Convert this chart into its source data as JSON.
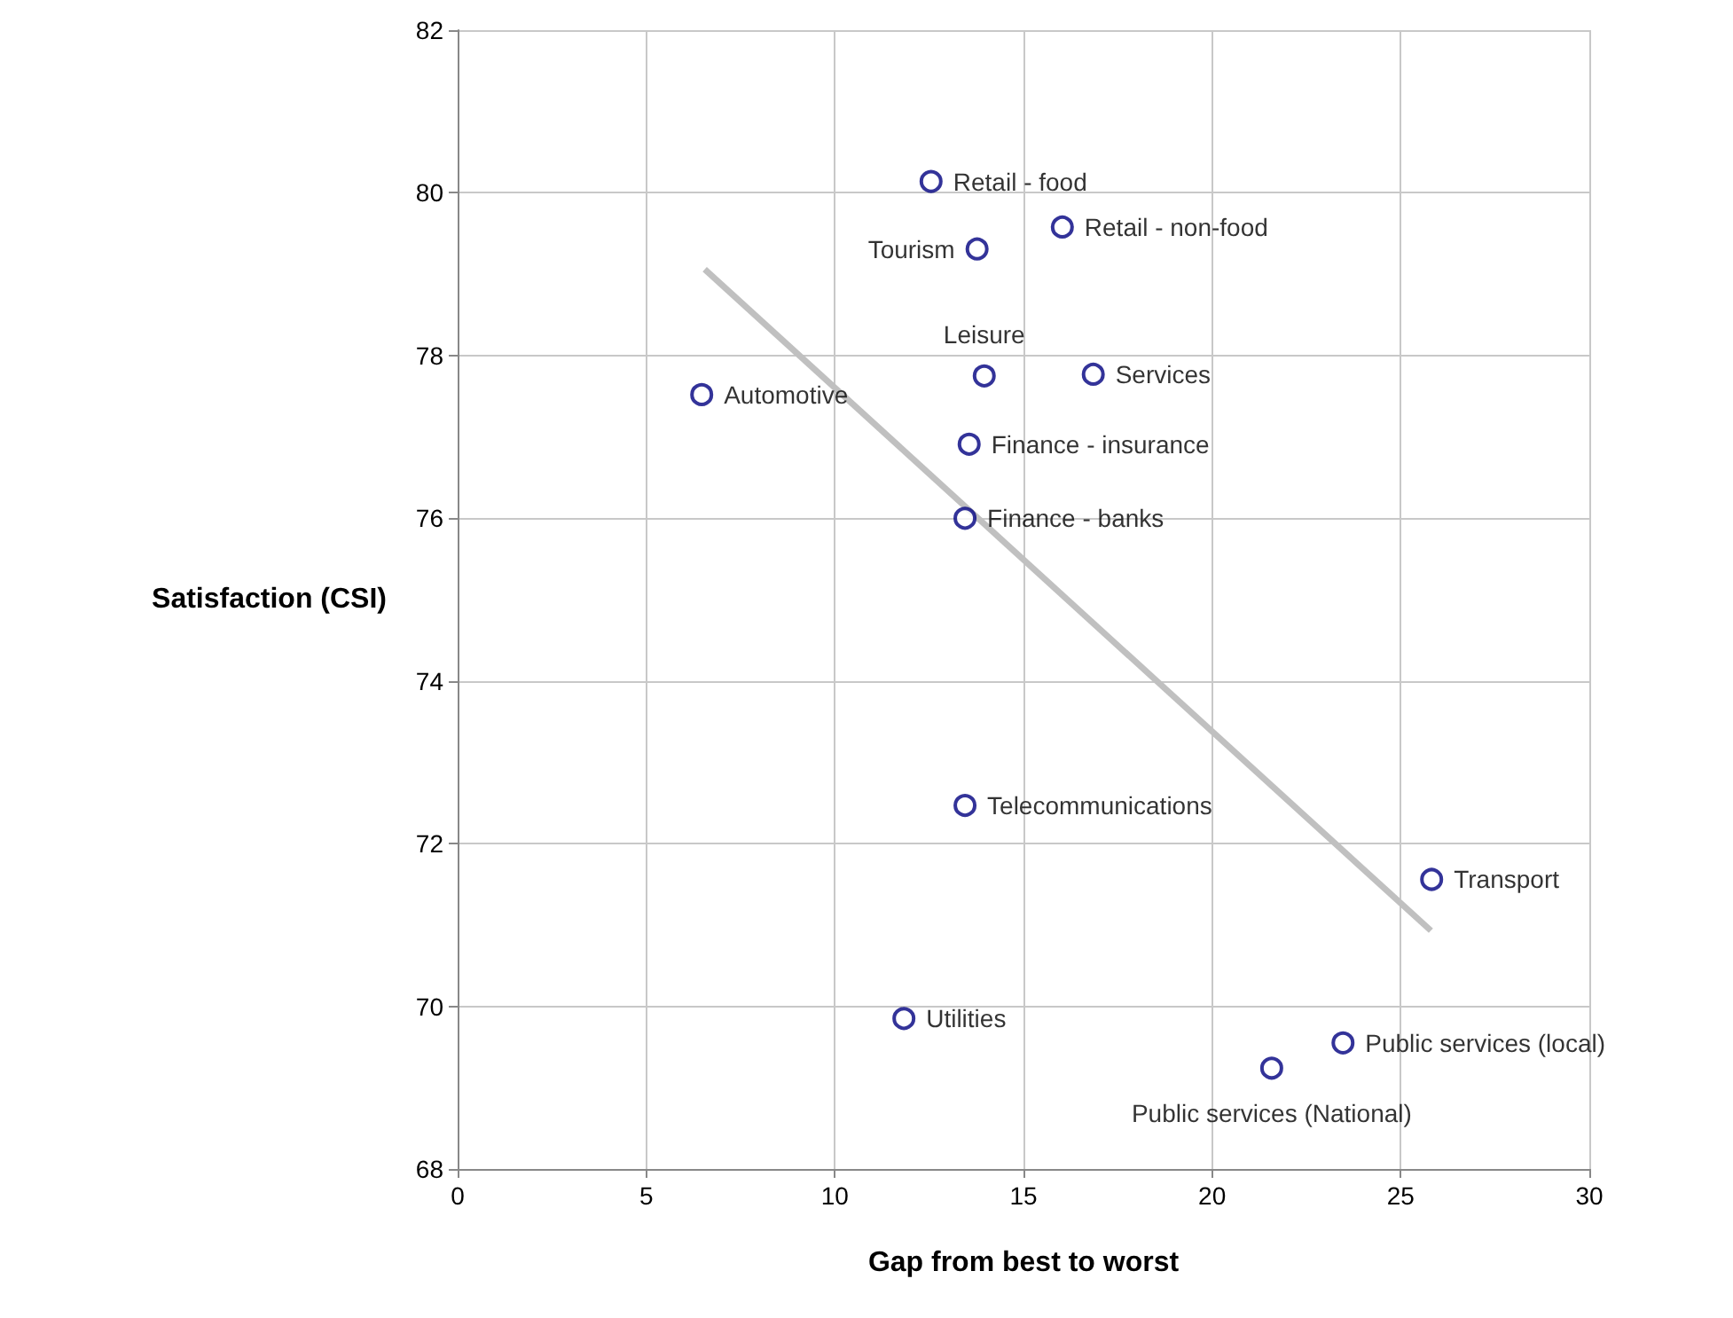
{
  "chart_data": {
    "type": "scatter",
    "xlabel": "Gap from best to worst",
    "ylabel": "Satisfaction (CSI)",
    "xlim": [
      0,
      30
    ],
    "xticks": [
      0,
      5,
      10,
      15,
      20,
      25,
      30
    ],
    "ylim": [
      68,
      82
    ],
    "yticks": [
      68,
      70,
      72,
      74,
      76,
      78,
      80,
      82
    ],
    "grid": true,
    "series": [
      {
        "marker": "circle",
        "color": "#000080",
        "x": [
          12.55,
          16.03,
          13.77,
          13.96,
          16.85,
          6.47,
          13.56,
          13.45,
          13.45,
          25.82,
          11.83,
          23.47,
          21.58
        ],
        "values": [
          80.14,
          79.58,
          79.31,
          77.75,
          77.77,
          77.52,
          76.91,
          76.0,
          72.47,
          71.56,
          69.85,
          69.55,
          69.24
        ],
        "value_labels": [
          "Retail - food",
          "Retail - non-food",
          "Tourism",
          "Leisure",
          "Services",
          "Automotive",
          "Finance - insurance",
          "Finance - banks",
          "Telecommunications",
          "Transport",
          "Utilities",
          "Public services (local)",
          "Public services (National)"
        ]
      },
      {
        "type": "line",
        "marker": "none",
        "color": "#c0c0c0",
        "x": [
          6.55,
          25.8
        ],
        "values": [
          79.06,
          70.93
        ]
      }
    ]
  }
}
